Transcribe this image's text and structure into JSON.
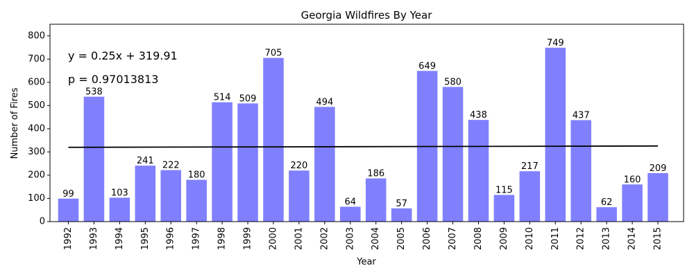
{
  "chart_data": {
    "type": "bar",
    "title": "Georgia Wildfires By Year",
    "xlabel": "Year",
    "ylabel": "Number of Fires",
    "categories": [
      "1992",
      "1993",
      "1994",
      "1995",
      "1996",
      "1997",
      "1998",
      "1999",
      "2000",
      "2001",
      "2002",
      "2003",
      "2004",
      "2005",
      "2006",
      "2007",
      "2008",
      "2009",
      "2010",
      "2011",
      "2012",
      "2013",
      "2014",
      "2015"
    ],
    "values": [
      99,
      538,
      103,
      241,
      222,
      180,
      514,
      509,
      705,
      220,
      494,
      64,
      186,
      57,
      649,
      580,
      438,
      115,
      217,
      749,
      437,
      62,
      160,
      209
    ],
    "ylim": [
      0,
      850
    ],
    "yticks": [
      0,
      100,
      200,
      300,
      400,
      500,
      600,
      700,
      800
    ],
    "bar_color": "#8080ff",
    "trendline": {
      "color": "#000000",
      "slope": 0.25,
      "intercept": 319.91
    },
    "annotations": [
      "y = 0.25x + 319.91",
      "p = 0.97013813"
    ],
    "grid": false
  }
}
